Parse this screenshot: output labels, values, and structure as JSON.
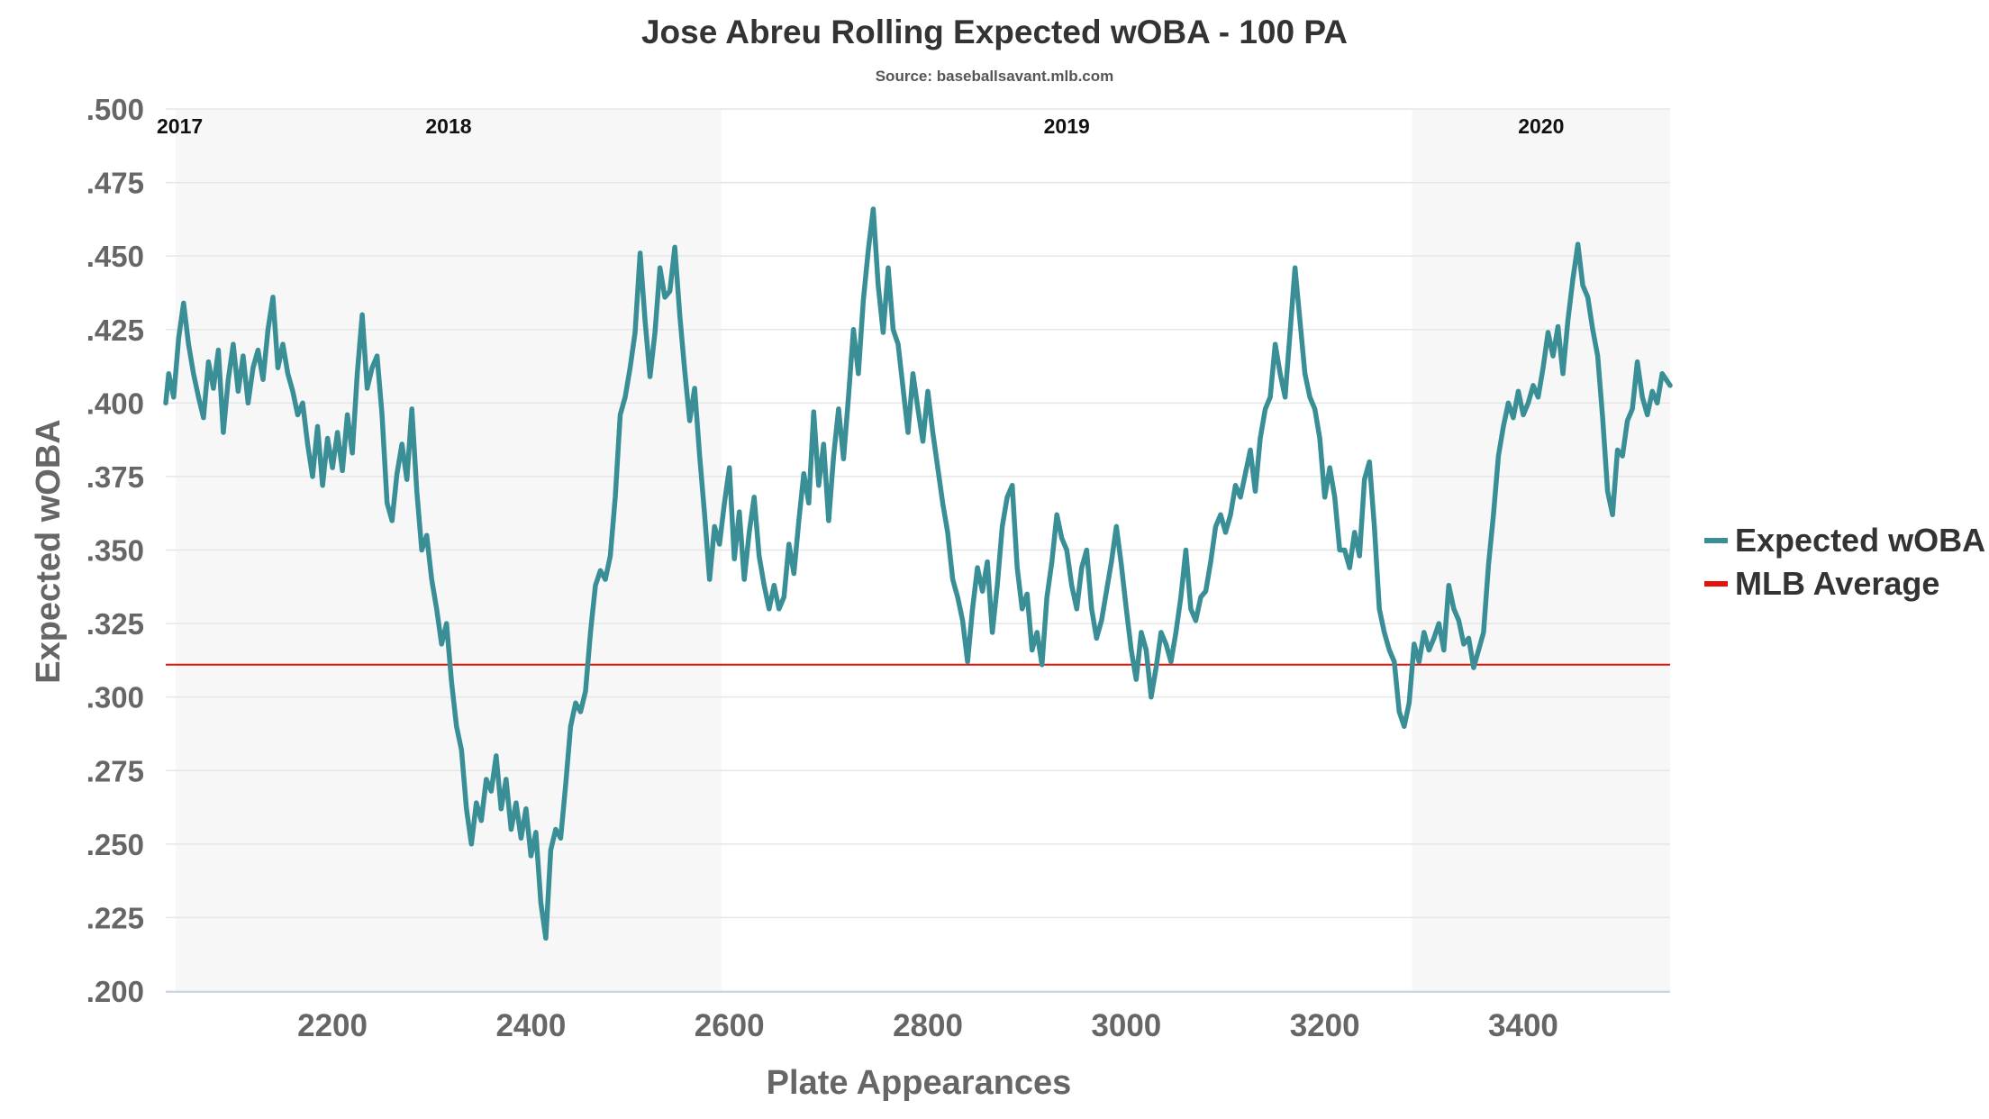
{
  "colors": {
    "series": "#3a8f97",
    "average": "#e3120b",
    "band": "#f7f7f7",
    "grid": "#e6e6e6",
    "axis": "#ccd6eb"
  },
  "chart_data": {
    "type": "line",
    "title": "Jose Abreu Rolling Expected wOBA - 100 PA",
    "subtitle": "Source: baseballsavant.mlb.com",
    "xlabel": "Plate Appearances",
    "ylabel": "Expected wOBA",
    "xlim": [
      2032,
      3548
    ],
    "ylim": [
      0.2,
      0.5
    ],
    "xticks": [
      2200,
      2400,
      2600,
      2800,
      3000,
      3200,
      3400
    ],
    "yticks": [
      ".200",
      ".225",
      ".250",
      ".275",
      ".300",
      ".325",
      ".350",
      ".375",
      ".400",
      ".425",
      ".450",
      ".475",
      ".500"
    ],
    "grid": true,
    "legend": "right",
    "seasons": [
      {
        "label": "2017",
        "start": 2032,
        "end": 2042
      },
      {
        "label": "2018",
        "start": 2042,
        "end": 2592
      },
      {
        "label": "2019",
        "start": 2592,
        "end": 3288
      },
      {
        "label": "2020",
        "start": 3288,
        "end": 3548
      }
    ],
    "reference_line": {
      "name": "MLB Average",
      "value": 0.311
    },
    "series": [
      {
        "name": "Expected wOBA",
        "points": [
          [
            2032,
            0.4
          ],
          [
            2035,
            0.41
          ],
          [
            2040,
            0.402
          ],
          [
            2045,
            0.422
          ],
          [
            2050,
            0.434
          ],
          [
            2055,
            0.42
          ],
          [
            2060,
            0.41
          ],
          [
            2065,
            0.402
          ],
          [
            2070,
            0.395
          ],
          [
            2075,
            0.414
          ],
          [
            2080,
            0.405
          ],
          [
            2085,
            0.418
          ],
          [
            2090,
            0.39
          ],
          [
            2095,
            0.408
          ],
          [
            2100,
            0.42
          ],
          [
            2105,
            0.404
          ],
          [
            2110,
            0.416
          ],
          [
            2115,
            0.4
          ],
          [
            2120,
            0.412
          ],
          [
            2125,
            0.418
          ],
          [
            2130,
            0.408
          ],
          [
            2135,
            0.425
          ],
          [
            2140,
            0.436
          ],
          [
            2145,
            0.412
          ],
          [
            2150,
            0.42
          ],
          [
            2155,
            0.41
          ],
          [
            2160,
            0.404
          ],
          [
            2165,
            0.396
          ],
          [
            2170,
            0.4
          ],
          [
            2175,
            0.386
          ],
          [
            2180,
            0.375
          ],
          [
            2185,
            0.392
          ],
          [
            2190,
            0.372
          ],
          [
            2195,
            0.388
          ],
          [
            2200,
            0.378
          ],
          [
            2205,
            0.39
          ],
          [
            2210,
            0.377
          ],
          [
            2215,
            0.396
          ],
          [
            2220,
            0.383
          ],
          [
            2225,
            0.41
          ],
          [
            2230,
            0.43
          ],
          [
            2235,
            0.405
          ],
          [
            2240,
            0.412
          ],
          [
            2245,
            0.416
          ],
          [
            2250,
            0.396
          ],
          [
            2255,
            0.366
          ],
          [
            2260,
            0.36
          ],
          [
            2265,
            0.376
          ],
          [
            2270,
            0.386
          ],
          [
            2275,
            0.374
          ],
          [
            2280,
            0.398
          ],
          [
            2285,
            0.37
          ],
          [
            2290,
            0.35
          ],
          [
            2295,
            0.355
          ],
          [
            2300,
            0.34
          ],
          [
            2305,
            0.33
          ],
          [
            2310,
            0.318
          ],
          [
            2315,
            0.325
          ],
          [
            2320,
            0.305
          ],
          [
            2325,
            0.29
          ],
          [
            2330,
            0.282
          ],
          [
            2335,
            0.262
          ],
          [
            2340,
            0.25
          ],
          [
            2345,
            0.264
          ],
          [
            2350,
            0.258
          ],
          [
            2355,
            0.272
          ],
          [
            2360,
            0.268
          ],
          [
            2365,
            0.28
          ],
          [
            2370,
            0.262
          ],
          [
            2375,
            0.272
          ],
          [
            2380,
            0.255
          ],
          [
            2385,
            0.264
          ],
          [
            2390,
            0.252
          ],
          [
            2395,
            0.262
          ],
          [
            2400,
            0.246
          ],
          [
            2405,
            0.254
          ],
          [
            2410,
            0.23
          ],
          [
            2415,
            0.218
          ],
          [
            2420,
            0.248
          ],
          [
            2425,
            0.255
          ],
          [
            2430,
            0.252
          ],
          [
            2435,
            0.27
          ],
          [
            2440,
            0.29
          ],
          [
            2445,
            0.298
          ],
          [
            2450,
            0.295
          ],
          [
            2455,
            0.302
          ],
          [
            2460,
            0.322
          ],
          [
            2465,
            0.338
          ],
          [
            2470,
            0.343
          ],
          [
            2475,
            0.34
          ],
          [
            2480,
            0.348
          ],
          [
            2485,
            0.368
          ],
          [
            2490,
            0.396
          ],
          [
            2495,
            0.402
          ],
          [
            2500,
            0.412
          ],
          [
            2505,
            0.424
          ],
          [
            2510,
            0.451
          ],
          [
            2515,
            0.428
          ],
          [
            2520,
            0.409
          ],
          [
            2525,
            0.424
          ],
          [
            2530,
            0.446
          ],
          [
            2535,
            0.436
          ],
          [
            2540,
            0.438
          ],
          [
            2545,
            0.453
          ],
          [
            2550,
            0.43
          ],
          [
            2555,
            0.411
          ],
          [
            2560,
            0.394
          ],
          [
            2565,
            0.405
          ],
          [
            2570,
            0.382
          ],
          [
            2575,
            0.362
          ],
          [
            2580,
            0.34
          ],
          [
            2585,
            0.358
          ],
          [
            2590,
            0.352
          ],
          [
            2595,
            0.366
          ],
          [
            2600,
            0.378
          ],
          [
            2605,
            0.347
          ],
          [
            2610,
            0.363
          ],
          [
            2615,
            0.34
          ],
          [
            2620,
            0.356
          ],
          [
            2625,
            0.368
          ],
          [
            2630,
            0.348
          ],
          [
            2635,
            0.338
          ],
          [
            2640,
            0.33
          ],
          [
            2645,
            0.338
          ],
          [
            2650,
            0.33
          ],
          [
            2655,
            0.334
          ],
          [
            2660,
            0.352
          ],
          [
            2665,
            0.342
          ],
          [
            2670,
            0.36
          ],
          [
            2675,
            0.376
          ],
          [
            2680,
            0.366
          ],
          [
            2685,
            0.397
          ],
          [
            2690,
            0.372
          ],
          [
            2695,
            0.386
          ],
          [
            2700,
            0.36
          ],
          [
            2705,
            0.382
          ],
          [
            2710,
            0.398
          ],
          [
            2715,
            0.381
          ],
          [
            2720,
            0.402
          ],
          [
            2725,
            0.425
          ],
          [
            2730,
            0.41
          ],
          [
            2735,
            0.435
          ],
          [
            2740,
            0.452
          ],
          [
            2745,
            0.466
          ],
          [
            2750,
            0.44
          ],
          [
            2755,
            0.424
          ],
          [
            2760,
            0.446
          ],
          [
            2765,
            0.425
          ],
          [
            2770,
            0.42
          ],
          [
            2775,
            0.405
          ],
          [
            2780,
            0.39
          ],
          [
            2785,
            0.41
          ],
          [
            2790,
            0.398
          ],
          [
            2795,
            0.387
          ],
          [
            2800,
            0.404
          ],
          [
            2805,
            0.39
          ],
          [
            2810,
            0.378
          ],
          [
            2815,
            0.366
          ],
          [
            2820,
            0.356
          ],
          [
            2825,
            0.34
          ],
          [
            2830,
            0.334
          ],
          [
            2835,
            0.326
          ],
          [
            2840,
            0.312
          ],
          [
            2845,
            0.33
          ],
          [
            2850,
            0.344
          ],
          [
            2855,
            0.336
          ],
          [
            2860,
            0.346
          ],
          [
            2865,
            0.322
          ],
          [
            2870,
            0.338
          ],
          [
            2875,
            0.358
          ],
          [
            2880,
            0.368
          ],
          [
            2885,
            0.372
          ],
          [
            2890,
            0.344
          ],
          [
            2895,
            0.33
          ],
          [
            2900,
            0.335
          ],
          [
            2905,
            0.316
          ],
          [
            2910,
            0.322
          ],
          [
            2915,
            0.311
          ],
          [
            2920,
            0.334
          ],
          [
            2925,
            0.346
          ],
          [
            2930,
            0.362
          ],
          [
            2935,
            0.354
          ],
          [
            2940,
            0.35
          ],
          [
            2945,
            0.338
          ],
          [
            2950,
            0.33
          ],
          [
            2955,
            0.344
          ],
          [
            2960,
            0.35
          ],
          [
            2965,
            0.33
          ],
          [
            2970,
            0.32
          ],
          [
            2975,
            0.326
          ],
          [
            2980,
            0.336
          ],
          [
            2985,
            0.346
          ],
          [
            2990,
            0.358
          ],
          [
            2995,
            0.345
          ],
          [
            3000,
            0.33
          ],
          [
            3005,
            0.316
          ],
          [
            3010,
            0.306
          ],
          [
            3015,
            0.322
          ],
          [
            3020,
            0.316
          ],
          [
            3025,
            0.3
          ],
          [
            3030,
            0.31
          ],
          [
            3035,
            0.322
          ],
          [
            3040,
            0.318
          ],
          [
            3045,
            0.312
          ],
          [
            3050,
            0.322
          ],
          [
            3055,
            0.334
          ],
          [
            3060,
            0.35
          ],
          [
            3065,
            0.33
          ],
          [
            3070,
            0.326
          ],
          [
            3075,
            0.334
          ],
          [
            3080,
            0.336
          ],
          [
            3085,
            0.346
          ],
          [
            3090,
            0.358
          ],
          [
            3095,
            0.362
          ],
          [
            3100,
            0.356
          ],
          [
            3105,
            0.362
          ],
          [
            3110,
            0.372
          ],
          [
            3115,
            0.368
          ],
          [
            3120,
            0.376
          ],
          [
            3125,
            0.384
          ],
          [
            3130,
            0.37
          ],
          [
            3135,
            0.388
          ],
          [
            3140,
            0.398
          ],
          [
            3145,
            0.402
          ],
          [
            3150,
            0.42
          ],
          [
            3155,
            0.41
          ],
          [
            3160,
            0.402
          ],
          [
            3165,
            0.424
          ],
          [
            3170,
            0.446
          ],
          [
            3175,
            0.428
          ],
          [
            3180,
            0.41
          ],
          [
            3185,
            0.402
          ],
          [
            3190,
            0.398
          ],
          [
            3195,
            0.388
          ],
          [
            3200,
            0.368
          ],
          [
            3205,
            0.378
          ],
          [
            3210,
            0.368
          ],
          [
            3215,
            0.35
          ],
          [
            3220,
            0.35
          ],
          [
            3225,
            0.344
          ],
          [
            3230,
            0.356
          ],
          [
            3235,
            0.348
          ],
          [
            3240,
            0.374
          ],
          [
            3245,
            0.38
          ],
          [
            3250,
            0.358
          ],
          [
            3255,
            0.33
          ],
          [
            3260,
            0.322
          ],
          [
            3265,
            0.316
          ],
          [
            3270,
            0.312
          ],
          [
            3275,
            0.295
          ],
          [
            3280,
            0.29
          ],
          [
            3285,
            0.298
          ],
          [
            3290,
            0.318
          ],
          [
            3295,
            0.312
          ],
          [
            3300,
            0.322
          ],
          [
            3305,
            0.316
          ],
          [
            3310,
            0.32
          ],
          [
            3315,
            0.325
          ],
          [
            3320,
            0.316
          ],
          [
            3325,
            0.338
          ],
          [
            3330,
            0.33
          ],
          [
            3335,
            0.326
          ],
          [
            3340,
            0.318
          ],
          [
            3345,
            0.32
          ],
          [
            3350,
            0.31
          ],
          [
            3355,
            0.316
          ],
          [
            3360,
            0.322
          ],
          [
            3365,
            0.345
          ],
          [
            3370,
            0.362
          ],
          [
            3375,
            0.382
          ],
          [
            3380,
            0.392
          ],
          [
            3385,
            0.4
          ],
          [
            3390,
            0.395
          ],
          [
            3395,
            0.404
          ],
          [
            3400,
            0.396
          ],
          [
            3405,
            0.4
          ],
          [
            3410,
            0.406
          ],
          [
            3415,
            0.402
          ],
          [
            3420,
            0.412
          ],
          [
            3425,
            0.424
          ],
          [
            3430,
            0.416
          ],
          [
            3435,
            0.426
          ],
          [
            3440,
            0.41
          ],
          [
            3445,
            0.428
          ],
          [
            3450,
            0.442
          ],
          [
            3455,
            0.454
          ],
          [
            3460,
            0.44
          ],
          [
            3465,
            0.436
          ],
          [
            3470,
            0.425
          ],
          [
            3475,
            0.416
          ],
          [
            3480,
            0.395
          ],
          [
            3485,
            0.37
          ],
          [
            3490,
            0.362
          ],
          [
            3495,
            0.384
          ],
          [
            3500,
            0.382
          ],
          [
            3505,
            0.394
          ],
          [
            3510,
            0.398
          ],
          [
            3515,
            0.414
          ],
          [
            3520,
            0.402
          ],
          [
            3525,
            0.396
          ],
          [
            3530,
            0.404
          ],
          [
            3535,
            0.4
          ],
          [
            3540,
            0.41
          ],
          [
            3548,
            0.406
          ]
        ]
      }
    ]
  }
}
